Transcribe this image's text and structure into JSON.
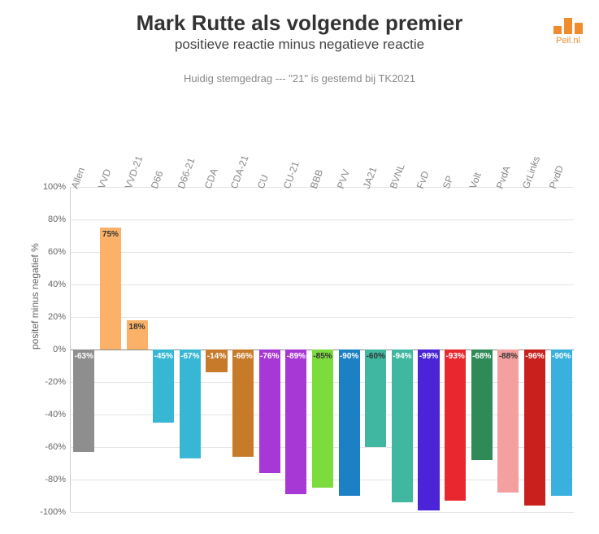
{
  "title": "Mark Rutte als volgende premier",
  "subtitle": "positieve reactie minus negatieve reactie",
  "note": "Huidig stemgedrag --- \"21\" is gestemd bij TK2021",
  "ylabel": "positef minus negatief %",
  "logo_text": "Peil.nl",
  "logo_color": "#f08c2e",
  "title_fontsize": 26,
  "subtitle_fontsize": 17,
  "note_fontsize": 13,
  "chart": {
    "type": "bar",
    "ylim": [
      -100,
      100
    ],
    "ytick_step": 20,
    "grid_color": "#e4e4e4",
    "zero_color": "#888888",
    "background_color": "#ffffff",
    "categories": [
      "Allen",
      "VVD",
      "VVD-21",
      "D66",
      "D66-21",
      "CDA",
      "CDA-21",
      "CU",
      "CU-21",
      "BBB",
      "PVV",
      "JA21",
      "BVNL",
      "FvD",
      "SP",
      "Volt",
      "PvdA",
      "GrLinks",
      "PvdD"
    ],
    "values": [
      -63,
      75,
      18,
      -45,
      -67,
      -14,
      -66,
      -76,
      -89,
      -85,
      -90,
      -60,
      -94,
      -99,
      -93,
      -68,
      -88,
      -96,
      -90
    ],
    "bar_colors": [
      "#8e8e8e",
      "#fbb268",
      "#fbb268",
      "#38b7d4",
      "#38b7d4",
      "#c77b2a",
      "#c77b2a",
      "#a838d6",
      "#a838d6",
      "#7cdb3d",
      "#1c80c4",
      "#3fb7a1",
      "#3fb7a1",
      "#4a24d6",
      "#e8282e",
      "#2e8b57",
      "#f5a0a0",
      "#c9201e",
      "#3ab0de"
    ],
    "value_label_colors": [
      "#ffffff",
      "#333333",
      "#333333",
      "#ffffff",
      "#ffffff",
      "#ffffff",
      "#ffffff",
      "#ffffff",
      "#ffffff",
      "#333333",
      "#ffffff",
      "#333333",
      "#ffffff",
      "#ffffff",
      "#ffffff",
      "#ffffff",
      "#333333",
      "#ffffff",
      "#ffffff"
    ],
    "bar_width": 0.85
  }
}
